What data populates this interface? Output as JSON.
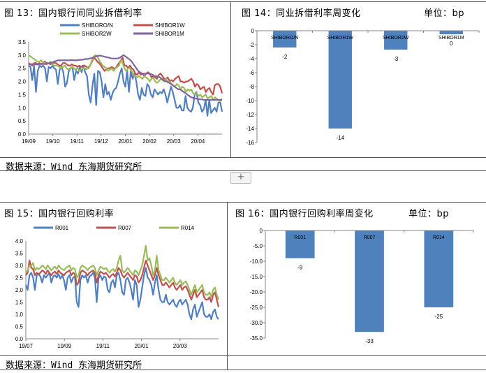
{
  "fig13": {
    "caption": "图 13：国内银行间同业拆借利率",
    "chart_data": {
      "type": "line",
      "title": "图 13：国内银行间同业拆借利率",
      "x_ticks": [
        "19/09",
        "19/10",
        "19/11",
        "19/12",
        "20/01",
        "20/02",
        "20/03",
        "20/04"
      ],
      "y_ticks": [
        "0.0",
        "0.5",
        "1.0",
        "1.5",
        "2.0",
        "2.5",
        "3.0",
        "3.5"
      ],
      "ylim": [
        0,
        3.5
      ],
      "legend_position": "top",
      "series": [
        {
          "name": "SHIBORO/N",
          "color": "#4f7fc0",
          "values": [
            2.6,
            2.55,
            2.05,
            2.6,
            1.6,
            2.4,
            2.6,
            2.55,
            2.6,
            2.5,
            2.0,
            2.55,
            2.5,
            2.6,
            2.5,
            2.45,
            1.9,
            2.45,
            2.55,
            2.35,
            1.8,
            1.95,
            2.4,
            2.5,
            2.55,
            2.05,
            2.4,
            2.3,
            2.55,
            2.35,
            2.6,
            2.35,
            2.2,
            1.5,
            1.2,
            1.85,
            2.3,
            1.1,
            2.4,
            2.35,
            2.0,
            1.4,
            1.9,
            1.5,
            1.6,
            1.3,
            1.55,
            1.7,
            1.75,
            2.0,
            2.3,
            2.5,
            2.0,
            1.8,
            2.4,
            1.6,
            2.4,
            2.1,
            2.3,
            2.0,
            1.5,
            1.3,
            1.75,
            1.5,
            1.45,
            1.9,
            1.8,
            1.5,
            1.4,
            1.7,
            1.6,
            1.5,
            1.6,
            1.55,
            1.7,
            1.5,
            1.2,
            1.5,
            1.8,
            1.6,
            1.3,
            1.0,
            1.0,
            1.1,
            0.9,
            0.9,
            1.45,
            1.0,
            0.9,
            0.85,
            1.0,
            1.5,
            1.6,
            1.2,
            1.1,
            0.85,
            0.95,
            1.3,
            0.7,
            1.3,
            0.8,
            0.9,
            1.0,
            0.85,
            1.2,
            1.2,
            0.85
          ]
        },
        {
          "name": "SHIBOR1W",
          "color": "#c0504d",
          "values": [
            2.7,
            2.65,
            2.6,
            2.7,
            2.7,
            2.65,
            2.7,
            2.65,
            2.7,
            2.75,
            2.7,
            2.7,
            2.65,
            2.7,
            2.7,
            2.7,
            2.65,
            2.6,
            2.6,
            2.7,
            2.7,
            2.65,
            2.6,
            2.6,
            2.65,
            2.6,
            2.6,
            2.55,
            2.6,
            2.55,
            2.6,
            2.6,
            2.55,
            2.5,
            2.6,
            2.75,
            2.9,
            2.85,
            2.75,
            2.7,
            2.6,
            2.5,
            2.4,
            2.45,
            2.5,
            2.5,
            2.55,
            2.5,
            2.5,
            2.6,
            2.7,
            2.8,
            2.9,
            2.6,
            2.6,
            2.5,
            2.6,
            2.5,
            2.45,
            2.3,
            2.25,
            2.35,
            2.25,
            2.3,
            2.2,
            2.3,
            2.35,
            2.3,
            2.15,
            2.2,
            2.15,
            2.1,
            2.25,
            2.3,
            2.2,
            2.1,
            2.1,
            2.15,
            2.0,
            2.05,
            2.0,
            2.1,
            2.15,
            2.2,
            2.0,
            2.0,
            1.95,
            2.0,
            2.0,
            2.05,
            2.1,
            2.0,
            1.8,
            1.9,
            1.85,
            1.7,
            1.75,
            1.8,
            1.6,
            1.7,
            1.75,
            1.6,
            1.5,
            1.85,
            1.9,
            1.9,
            1.8,
            1.55
          ]
        },
        {
          "name": "SHIBOR2W",
          "color": "#9bbb59",
          "values": [
            3.0,
            2.95,
            2.9,
            2.85,
            2.8,
            2.75,
            2.75,
            2.8,
            2.7,
            2.7,
            2.65,
            2.7,
            2.75,
            2.65,
            2.6,
            2.6,
            2.6,
            2.55,
            2.5,
            2.55,
            2.6,
            2.5,
            2.45,
            2.5,
            2.55,
            2.5,
            2.45,
            2.5,
            2.4,
            2.45,
            2.5,
            2.5,
            2.45,
            2.55,
            2.6,
            2.8,
            2.95,
            3.0,
            2.95,
            2.8,
            2.7,
            2.6,
            2.55,
            2.5,
            2.4,
            2.45,
            2.5,
            2.4,
            2.5,
            2.55,
            2.6,
            2.8,
            2.7,
            2.5,
            2.4,
            2.5,
            2.5,
            2.4,
            2.25,
            2.2,
            2.15,
            2.2,
            2.15,
            2.1,
            2.2,
            2.15,
            2.1,
            2.0,
            2.1,
            2.15,
            2.0,
            1.95,
            2.0,
            2.1,
            2.05,
            2.0,
            2.1,
            1.95,
            2.0,
            1.9,
            1.85,
            1.8,
            1.9,
            1.85,
            1.7,
            1.8,
            1.75,
            1.6,
            1.7,
            1.65,
            1.7,
            1.55,
            1.5,
            1.55,
            1.45,
            1.5,
            1.4,
            1.45,
            1.5,
            1.35,
            1.4,
            1.45,
            1.3,
            1.4,
            1.35,
            1.3,
            1.25,
            1.35
          ]
        },
        {
          "name": "SHIBOR1M",
          "color": "#8064a2",
          "values": [
            2.65,
            2.65,
            2.66,
            2.66,
            2.65,
            2.64,
            2.66,
            2.67,
            2.66,
            2.66,
            2.67,
            2.68,
            2.7,
            2.72,
            2.75,
            2.78,
            2.8,
            2.8,
            2.8,
            2.8,
            2.8,
            2.8,
            2.8,
            2.81,
            2.81,
            2.8,
            2.8,
            2.81,
            2.82,
            2.82,
            2.83,
            2.85,
            2.85,
            2.86,
            2.88,
            2.9,
            2.92,
            2.95,
            2.97,
            2.98,
            2.97,
            2.95,
            2.93,
            2.92,
            2.9,
            2.88,
            2.87,
            2.87,
            2.87,
            2.88,
            2.9,
            2.95,
            3.0,
            2.95,
            2.9,
            2.85,
            2.8,
            2.7,
            2.6,
            2.5,
            2.4,
            2.35,
            2.3,
            2.3,
            2.3,
            2.3,
            2.3,
            2.28,
            2.25,
            2.2,
            2.2,
            2.18,
            2.15,
            2.1,
            2.05,
            2.0,
            2.0,
            1.95,
            1.9,
            1.85,
            1.8,
            1.75,
            1.7,
            1.7,
            1.65,
            1.6,
            1.55,
            1.5,
            1.45,
            1.4,
            1.38,
            1.35,
            1.35,
            1.33,
            1.32,
            1.32,
            1.3,
            1.3,
            1.3,
            1.3,
            1.3,
            1.3,
            1.3,
            1.3,
            1.3,
            1.3,
            1.3
          ]
        }
      ]
    }
  },
  "fig14": {
    "caption": "图 14：同业拆借利率周变化",
    "unit": "单位：bp",
    "chart_data": {
      "type": "bar",
      "title": "图 14：同业拆借利率周变化",
      "categories": [
        "SHIBORO/N",
        "SHIBOR1W",
        "SHIBOR2W",
        "SHIBOR1M"
      ],
      "values": [
        -2,
        -14,
        -3,
        0
      ],
      "value_labels": [
        "-2",
        "-14",
        "-3",
        "0"
      ],
      "bar_height_values": [
        -2.4,
        -14,
        -2.7,
        -0.5
      ],
      "ylim": [
        -16,
        0
      ],
      "y_ticks": [
        "0",
        "-2",
        "-4",
        "-6",
        "-8",
        "-10",
        "-12",
        "-14",
        "-16"
      ],
      "bar_color": "#4f81bd"
    }
  },
  "fig15": {
    "caption": "图 15：国内银行回购利率",
    "chart_data": {
      "type": "line",
      "title": "图 15：国内银行回购利率",
      "x_ticks": [
        "19/07",
        "19/09",
        "19/11",
        "20/01",
        "20/03"
      ],
      "y_ticks": [
        "0.0",
        "0.5",
        "1.0",
        "1.5",
        "2.0",
        "2.5",
        "3.0",
        "3.5",
        "4.0"
      ],
      "ylim": [
        0,
        4.0
      ],
      "legend_position": "top",
      "series": [
        {
          "name": "R001",
          "color": "#4f7fc0",
          "values": [
            2.2,
            2.0,
            2.6,
            2.7,
            2.5,
            2.0,
            2.6,
            2.65,
            2.55,
            2.3,
            2.6,
            2.5,
            2.6,
            2.7,
            2.3,
            2.55,
            2.6,
            2.5,
            2.65,
            2.45,
            2.6,
            2.4,
            2.0,
            2.5,
            2.6,
            2.3,
            2.5,
            2.55,
            1.5,
            1.3,
            2.4,
            2.6,
            2.5,
            2.6,
            2.3,
            2.55,
            2.6,
            2.7,
            2.5,
            1.5,
            2.5,
            2.6,
            2.4,
            2.55,
            2.5,
            2.0,
            1.9,
            2.3,
            2.4,
            2.1,
            2.6,
            2.7,
            2.4,
            1.9,
            1.8,
            2.4,
            2.5,
            2.3,
            2.0,
            1.6,
            2.4,
            2.2,
            1.3,
            1.6,
            2.1,
            2.6,
            2.9,
            2.5,
            2.4,
            2.2,
            1.8,
            2.3,
            2.6,
            2.0,
            1.6,
            1.5,
            1.5,
            1.8,
            1.5,
            1.4,
            1.5,
            1.6,
            1.4,
            1.3,
            1.5,
            1.6,
            1.4,
            1.5,
            1.6,
            1.4,
            1.0,
            0.8,
            1.2,
            1.4,
            0.9,
            1.1,
            1.3,
            1.5,
            1.0,
            0.9,
            0.9,
            1.0,
            0.8,
            1.1,
            1.2,
            0.9,
            0.8
          ]
        },
        {
          "name": "R007",
          "color": "#c0504d",
          "values": [
            2.6,
            2.7,
            3.2,
            2.9,
            2.85,
            2.6,
            2.7,
            2.65,
            2.7,
            2.8,
            2.75,
            2.65,
            2.8,
            2.7,
            2.6,
            2.7,
            2.75,
            2.65,
            2.8,
            2.7,
            2.65,
            2.6,
            2.7,
            2.75,
            2.8,
            2.6,
            2.7,
            2.65,
            2.2,
            2.3,
            2.7,
            2.8,
            2.75,
            2.7,
            2.6,
            2.7,
            2.75,
            2.8,
            2.7,
            2.3,
            2.6,
            2.75,
            2.7,
            2.65,
            2.7,
            2.6,
            2.5,
            2.6,
            2.65,
            2.55,
            2.7,
            2.9,
            2.8,
            2.6,
            2.5,
            2.6,
            2.7,
            2.6,
            2.5,
            2.4,
            2.6,
            2.55,
            2.3,
            2.4,
            2.6,
            2.9,
            3.2,
            3.0,
            2.8,
            2.6,
            2.4,
            2.6,
            2.9,
            2.6,
            2.4,
            2.2,
            2.2,
            2.3,
            2.2,
            2.1,
            2.2,
            2.3,
            2.1,
            2.0,
            2.1,
            2.2,
            2.0,
            2.1,
            2.15,
            2.0,
            1.8,
            1.6,
            1.8,
            2.0,
            1.7,
            1.8,
            1.9,
            2.0,
            1.7,
            1.6,
            1.6,
            1.7,
            1.5,
            1.8,
            1.9,
            1.6,
            1.3
          ]
        },
        {
          "name": "R014",
          "color": "#9bbb59",
          "values": [
            2.7,
            2.8,
            3.0,
            3.0,
            3.1,
            2.8,
            2.9,
            2.85,
            2.9,
            3.0,
            2.95,
            2.85,
            3.0,
            2.9,
            2.8,
            2.9,
            2.95,
            2.85,
            3.0,
            2.9,
            2.85,
            2.8,
            2.9,
            2.95,
            3.0,
            2.8,
            2.9,
            2.85,
            2.5,
            2.6,
            2.9,
            3.0,
            2.95,
            2.9,
            2.8,
            2.9,
            2.95,
            3.0,
            2.9,
            2.6,
            2.8,
            2.95,
            2.9,
            2.85,
            2.9,
            2.8,
            2.7,
            2.8,
            2.85,
            2.75,
            2.9,
            3.2,
            3.4,
            2.8,
            2.7,
            2.8,
            2.9,
            2.8,
            2.7,
            2.6,
            2.8,
            2.75,
            2.6,
            2.8,
            3.0,
            3.4,
            3.8,
            3.2,
            3.3,
            3.0,
            2.6,
            2.8,
            3.4,
            2.8,
            2.6,
            2.4,
            2.4,
            2.5,
            2.4,
            2.3,
            2.4,
            2.5,
            2.3,
            2.2,
            2.3,
            2.4,
            2.2,
            2.3,
            2.35,
            2.2,
            2.0,
            1.8,
            2.0,
            2.2,
            1.9,
            2.0,
            2.1,
            2.2,
            1.9,
            1.8,
            1.8,
            1.9,
            1.7,
            2.0,
            2.1,
            1.8,
            1.6
          ]
        }
      ]
    }
  },
  "fig16": {
    "caption": "图 16：国内银行回购利率周变化",
    "unit": "单位：bp",
    "chart_data": {
      "type": "bar",
      "title": "图 16：国内银行回购利率周变化",
      "categories": [
        "R001",
        "R007",
        "R014"
      ],
      "values": [
        -9,
        -33,
        -25
      ],
      "value_labels": [
        "-9",
        "-33",
        "-25"
      ],
      "ylim": [
        -35,
        0
      ],
      "y_ticks": [
        "0",
        "-5.0",
        "-10.0",
        "-15.0",
        "-20.0",
        "-25.0",
        "-30.0",
        "-35.0"
      ],
      "bar_color": "#4f81bd"
    }
  },
  "source_note": "数据来源：Wind   东海期货研究所",
  "add_button": "+"
}
